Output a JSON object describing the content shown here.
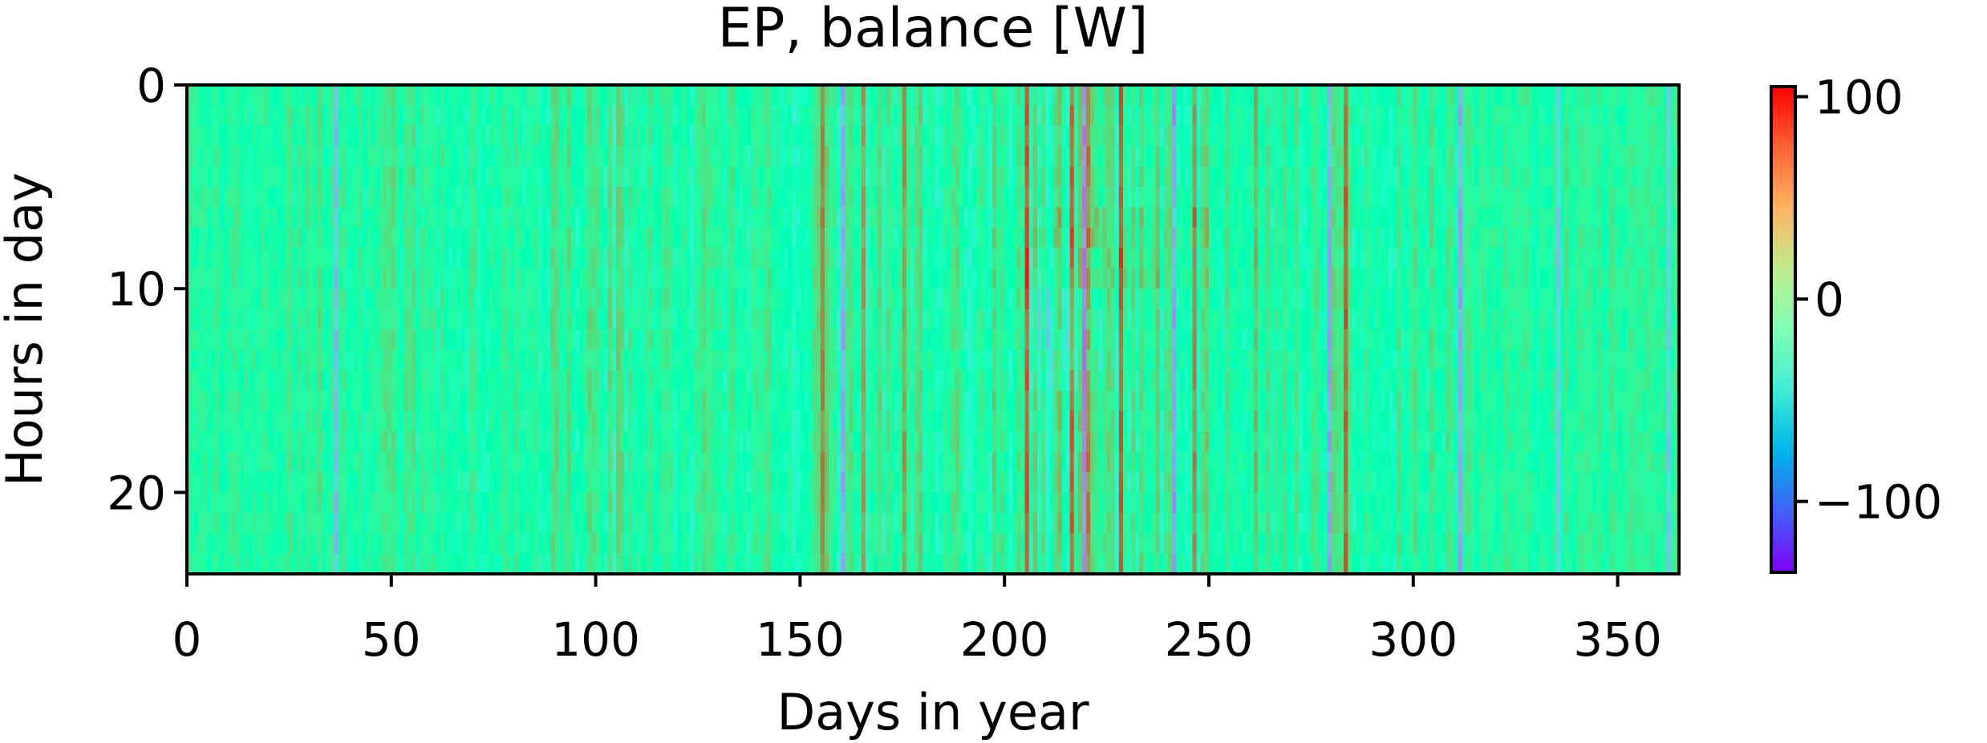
{
  "chart_data": {
    "type": "heatmap",
    "title": "EP, balance [W]",
    "xlabel": "Days in year",
    "ylabel": "Hours in day",
    "x_ticks": [
      0,
      50,
      100,
      150,
      200,
      250,
      300,
      350
    ],
    "y_ticks": [
      0,
      10,
      20
    ],
    "xlim": [
      0,
      365
    ],
    "ylim": [
      24,
      0
    ],
    "n_days": 365,
    "n_hours": 24,
    "colorbar": {
      "ticks": [
        100,
        0,
        -100
      ],
      "tick_labels": [
        "100",
        "0",
        "−100"
      ],
      "vmin": -135,
      "vmax": 105,
      "colormap": "rainbow"
    },
    "daily_pattern_description_values": {
      "typical_range": [
        -40,
        40
      ],
      "notable_high_days": [
        155,
        165,
        175,
        195,
        205,
        213,
        216,
        218,
        220,
        228,
        237,
        246,
        249,
        261,
        273,
        283
      ],
      "notable_low_days": [
        36,
        104,
        160,
        195,
        210,
        219,
        241,
        273,
        279,
        311,
        335,
        362
      ]
    }
  }
}
